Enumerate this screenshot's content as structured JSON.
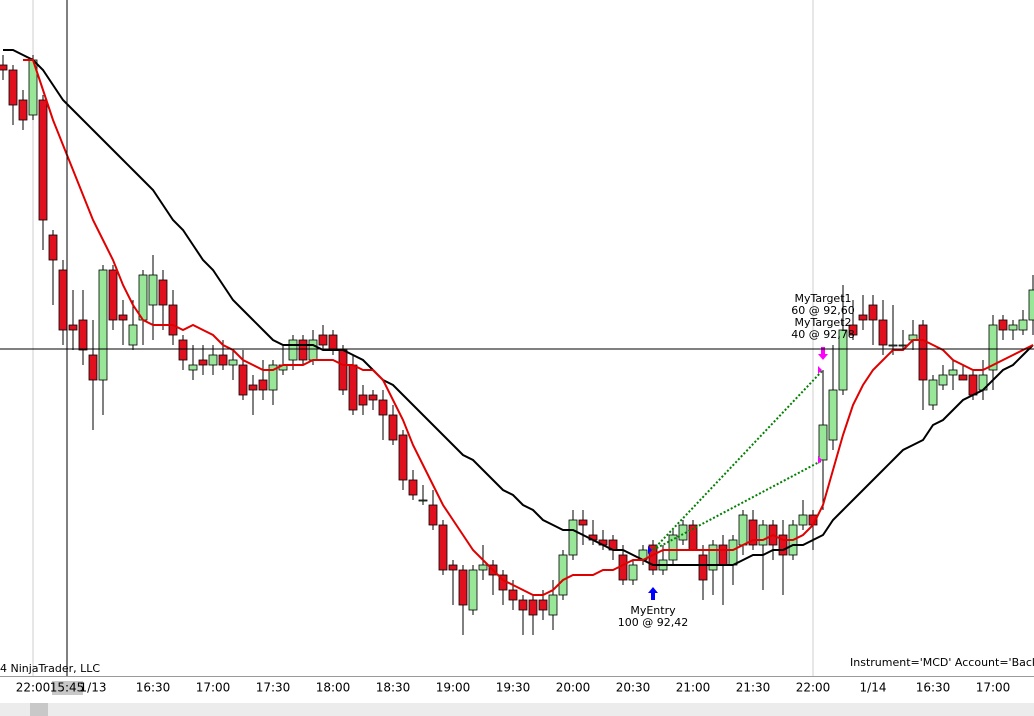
{
  "chart_data": {
    "type": "candlestick",
    "copyright": "4 NinjaTrader, LLC",
    "info": "Instrument='MCD' Account='Backtest",
    "crosshair_label": "15:45",
    "up_color": "#98e698",
    "down_color": "#e0101e",
    "ylim": [
      92.17,
      93.52
    ],
    "x": [
      null,
      null,
      null,
      "22:00",
      null,
      null,
      null,
      null,
      null,
      "1/13",
      null,
      null,
      null,
      null,
      null,
      "16:30",
      null,
      null,
      null,
      null,
      null,
      "17:00",
      null,
      null,
      null,
      null,
      null,
      "17:30",
      null,
      null,
      null,
      null,
      null,
      "18:00",
      null,
      null,
      null,
      null,
      null,
      "18:30",
      null,
      null,
      null,
      null,
      null,
      "19:00",
      null,
      null,
      null,
      null,
      null,
      "19:30",
      null,
      null,
      null,
      null,
      null,
      "20:00",
      null,
      null,
      null,
      null,
      null,
      "20:30",
      null,
      null,
      null,
      null,
      null,
      "21:00",
      null,
      null,
      null,
      null,
      null,
      "21:30",
      null,
      null,
      null,
      null,
      null,
      "22:00",
      null,
      null,
      null,
      null,
      null,
      "1/14",
      null,
      null,
      null,
      null,
      null,
      "16:30",
      null,
      null,
      null,
      null,
      null,
      "17:00",
      null,
      null,
      null,
      null
    ],
    "open": [
      93.39,
      93.38,
      93.32,
      93.29,
      93.32,
      93.05,
      92.98,
      92.87,
      92.88,
      92.81,
      92.76,
      92.98,
      92.89,
      92.83,
      92.88,
      92.91,
      92.96,
      92.91,
      92.84,
      92.78,
      92.8,
      92.79,
      92.81,
      92.79,
      92.79,
      92.75,
      92.76,
      92.74,
      92.78,
      92.8,
      92.84,
      92.8,
      92.85,
      92.85,
      92.82,
      92.79,
      92.73,
      92.73,
      92.72,
      92.69,
      92.65,
      92.56,
      92.52,
      92.51,
      92.47,
      92.39,
      92.38,
      92.3,
      92.38,
      92.39,
      92.37,
      92.34,
      92.32,
      92.32,
      92.32,
      92.29,
      92.33,
      92.41,
      92.48,
      92.45,
      92.44,
      92.44,
      92.41,
      92.36,
      92.4,
      92.43,
      92.38,
      92.4,
      92.44,
      92.47,
      92.41,
      92.38,
      92.43,
      92.39,
      92.43,
      92.48,
      92.43,
      92.47,
      92.45,
      92.41,
      92.47,
      92.49,
      92.6,
      92.64,
      92.74,
      92.87,
      92.89,
      92.91,
      92.88,
      92.83,
      92.83,
      92.84,
      92.87,
      92.71,
      92.75,
      92.77,
      92.77,
      92.77,
      92.74,
      92.78,
      92.88,
      92.86,
      92.86,
      92.88
    ],
    "high": [
      93.41,
      93.39,
      93.34,
      93.41,
      93.33,
      93.06,
      93.0,
      92.94,
      92.94,
      92.88,
      92.99,
      92.99,
      92.92,
      92.92,
      92.98,
      93.01,
      92.98,
      92.94,
      92.85,
      92.83,
      92.83,
      92.83,
      92.84,
      92.82,
      92.82,
      92.77,
      92.8,
      92.8,
      92.83,
      92.85,
      92.85,
      92.86,
      92.87,
      92.86,
      92.83,
      92.81,
      92.75,
      92.74,
      92.74,
      92.71,
      92.66,
      92.58,
      92.55,
      92.54,
      92.48,
      92.4,
      92.39,
      92.39,
      92.43,
      92.4,
      92.38,
      92.36,
      92.33,
      92.33,
      92.34,
      92.36,
      92.42,
      92.5,
      92.5,
      92.48,
      92.46,
      92.45,
      92.43,
      92.4,
      92.43,
      92.44,
      92.43,
      92.46,
      92.48,
      92.48,
      92.43,
      92.44,
      92.45,
      92.45,
      92.5,
      92.5,
      92.48,
      92.48,
      92.48,
      92.48,
      92.52,
      92.5,
      92.78,
      92.83,
      92.95,
      92.92,
      92.93,
      92.93,
      92.92,
      92.91,
      92.86,
      92.88,
      92.88,
      92.77,
      92.79,
      92.8,
      92.79,
      92.78,
      92.8,
      92.89,
      92.89,
      92.88,
      92.9,
      92.97
    ],
    "low": [
      93.36,
      93.27,
      93.26,
      93.28,
      93.02,
      92.91,
      92.83,
      92.82,
      92.79,
      92.66,
      92.69,
      92.86,
      92.83,
      92.82,
      92.83,
      92.84,
      92.86,
      92.83,
      92.78,
      92.76,
      92.77,
      92.77,
      92.78,
      92.76,
      92.72,
      92.69,
      92.72,
      92.71,
      92.77,
      92.78,
      92.79,
      92.79,
      92.82,
      92.81,
      92.73,
      92.69,
      92.69,
      92.7,
      92.64,
      92.63,
      92.54,
      92.52,
      92.51,
      92.46,
      92.37,
      92.31,
      92.25,
      92.29,
      92.36,
      92.33,
      92.31,
      92.3,
      92.25,
      92.25,
      92.28,
      92.26,
      92.32,
      92.4,
      92.43,
      92.43,
      92.42,
      92.4,
      92.35,
      92.35,
      92.39,
      92.37,
      92.37,
      92.39,
      92.43,
      92.42,
      92.32,
      92.33,
      92.31,
      92.35,
      92.41,
      92.42,
      92.34,
      92.4,
      92.33,
      92.4,
      92.46,
      92.42,
      92.5,
      92.62,
      92.73,
      92.84,
      92.86,
      92.83,
      92.81,
      92.81,
      92.82,
      92.82,
      92.7,
      92.7,
      92.74,
      92.74,
      92.76,
      92.72,
      92.72,
      92.74,
      92.84,
      92.84,
      92.85,
      92.85
    ],
    "close": [
      93.38,
      93.31,
      93.28,
      93.4,
      93.08,
      93.0,
      92.86,
      92.86,
      92.82,
      92.76,
      92.98,
      92.88,
      92.88,
      92.87,
      92.97,
      92.97,
      92.91,
      92.85,
      92.8,
      92.79,
      92.79,
      92.81,
      92.79,
      92.8,
      92.73,
      92.74,
      92.74,
      92.79,
      92.79,
      92.84,
      92.8,
      92.84,
      92.83,
      92.82,
      92.74,
      92.7,
      92.71,
      92.72,
      92.69,
      92.64,
      92.56,
      92.53,
      92.52,
      92.47,
      92.38,
      92.38,
      92.31,
      92.38,
      92.39,
      92.37,
      92.34,
      92.32,
      92.3,
      92.29,
      92.3,
      92.33,
      92.41,
      92.48,
      92.47,
      92.44,
      92.43,
      92.42,
      92.36,
      92.39,
      92.42,
      92.38,
      92.4,
      92.45,
      92.47,
      92.42,
      92.36,
      92.43,
      92.39,
      92.44,
      92.49,
      92.43,
      92.47,
      92.43,
      92.41,
      92.47,
      92.49,
      92.47,
      92.67,
      92.74,
      92.86,
      92.85,
      92.88,
      92.88,
      92.83,
      92.83,
      92.83,
      92.85,
      92.76,
      92.76,
      92.77,
      92.78,
      92.76,
      92.73,
      92.77,
      92.87,
      92.86,
      92.87,
      92.88,
      92.94
    ],
    "lines": [
      {
        "color": "#000000",
        "values": [
          93.42,
          93.42,
          93.41,
          93.4,
          93.38,
          93.35,
          93.32,
          93.3,
          93.28,
          93.26,
          93.24,
          93.22,
          93.2,
          93.18,
          93.16,
          93.14,
          93.11,
          93.08,
          93.06,
          93.03,
          93.0,
          92.98,
          92.95,
          92.92,
          92.9,
          92.88,
          92.86,
          92.84,
          92.83,
          92.83,
          92.83,
          92.83,
          92.82,
          92.82,
          92.82,
          92.81,
          92.8,
          92.78,
          92.76,
          92.75,
          92.73,
          92.71,
          92.69,
          92.67,
          92.65,
          92.63,
          92.61,
          92.6,
          92.58,
          92.56,
          92.54,
          92.53,
          92.51,
          92.5,
          92.48,
          92.47,
          92.46,
          92.46,
          92.45,
          92.44,
          92.43,
          92.42,
          92.42,
          92.41,
          92.4,
          92.39,
          92.39,
          92.39,
          92.39,
          92.39,
          92.39,
          92.39,
          92.39,
          92.39,
          92.4,
          92.41,
          92.41,
          92.42,
          92.42,
          92.43,
          92.43,
          92.44,
          92.45,
          92.48,
          92.5,
          92.52,
          92.54,
          92.56,
          92.58,
          92.6,
          92.62,
          92.63,
          92.64,
          92.67,
          92.68,
          92.7,
          92.72,
          92.73,
          92.74,
          92.76,
          92.78,
          92.79,
          92.81,
          92.83
        ]
      },
      {
        "color": "#e00000",
        "values": [
          null,
          null,
          93.4,
          93.4,
          93.34,
          93.28,
          93.23,
          93.18,
          93.13,
          93.08,
          93.04,
          93.0,
          92.95,
          92.91,
          92.88,
          92.87,
          92.87,
          92.87,
          92.86,
          92.87,
          92.86,
          92.85,
          92.83,
          92.82,
          92.8,
          92.79,
          92.78,
          92.78,
          92.79,
          92.79,
          92.79,
          92.8,
          92.8,
          92.8,
          92.79,
          92.79,
          92.78,
          92.78,
          92.76,
          92.72,
          92.68,
          92.63,
          92.59,
          92.55,
          92.51,
          92.48,
          92.45,
          92.42,
          92.4,
          92.38,
          92.36,
          92.35,
          92.34,
          92.33,
          92.33,
          92.34,
          92.36,
          92.37,
          92.37,
          92.37,
          92.38,
          92.38,
          92.39,
          92.4,
          92.4,
          92.41,
          92.42,
          92.42,
          92.42,
          92.42,
          92.42,
          92.42,
          92.42,
          92.42,
          92.43,
          92.44,
          92.44,
          92.45,
          92.44,
          92.44,
          92.45,
          92.47,
          92.51,
          92.58,
          92.65,
          92.71,
          92.75,
          92.78,
          92.8,
          92.82,
          92.82,
          92.84,
          92.84,
          92.83,
          92.82,
          92.8,
          92.79,
          92.78,
          92.78,
          92.79,
          92.8,
          92.81,
          92.82,
          92.83
        ]
      }
    ],
    "executions": [
      {
        "name": "MyEntry",
        "label": "100 @ 92,42",
        "color": "#0000ff",
        "values": [
          null,
          null,
          null,
          null,
          null,
          null,
          null,
          null,
          null,
          null,
          null,
          null,
          null,
          null,
          null,
          null,
          null,
          null,
          null,
          null,
          null,
          null,
          null,
          null,
          null,
          null,
          null,
          null,
          null,
          null,
          null,
          null,
          null,
          null,
          null,
          null,
          null,
          null,
          null,
          null,
          null,
          null,
          null,
          null,
          null,
          null,
          null,
          null,
          null,
          null,
          null,
          null,
          null,
          null,
          null,
          null,
          null,
          null,
          null,
          null,
          null,
          null,
          null,
          null,
          null,
          92.42,
          null,
          null,
          null,
          null,
          null,
          null,
          null,
          null,
          null,
          null,
          null,
          null,
          null,
          null,
          null,
          null,
          null,
          null,
          null,
          null,
          null,
          null,
          null,
          null,
          null,
          null,
          null,
          null,
          null,
          null,
          null,
          null,
          null,
          null,
          null,
          null,
          null,
          null
        ]
      },
      {
        "name": "MyTarget1",
        "label": "60 @ 92,60",
        "color": "#ff00ff",
        "values": [
          null,
          null,
          null,
          null,
          null,
          null,
          null,
          null,
          null,
          null,
          null,
          null,
          null,
          null,
          null,
          null,
          null,
          null,
          null,
          null,
          null,
          null,
          null,
          null,
          null,
          null,
          null,
          null,
          null,
          null,
          null,
          null,
          null,
          null,
          null,
          null,
          null,
          null,
          null,
          null,
          null,
          null,
          null,
          null,
          null,
          null,
          null,
          null,
          null,
          null,
          null,
          null,
          null,
          null,
          null,
          null,
          null,
          null,
          null,
          null,
          null,
          null,
          null,
          null,
          null,
          null,
          null,
          null,
          null,
          null,
          null,
          null,
          null,
          null,
          null,
          null,
          null,
          null,
          null,
          null,
          null,
          null,
          92.6,
          null,
          null,
          null,
          null,
          null,
          null,
          null,
          null,
          null,
          null,
          null,
          null,
          null,
          null,
          null,
          null,
          null,
          null,
          null,
          null,
          null
        ]
      },
      {
        "name": "MyTarget2",
        "label": "40 @ 92,78",
        "color": "#ff00ff",
        "values": [
          null,
          null,
          null,
          null,
          null,
          null,
          null,
          null,
          null,
          null,
          null,
          null,
          null,
          null,
          null,
          null,
          null,
          null,
          null,
          null,
          null,
          null,
          null,
          null,
          null,
          null,
          null,
          null,
          null,
          null,
          null,
          null,
          null,
          null,
          null,
          null,
          null,
          null,
          null,
          null,
          null,
          null,
          null,
          null,
          null,
          null,
          null,
          null,
          null,
          null,
          null,
          null,
          null,
          null,
          null,
          null,
          null,
          null,
          null,
          null,
          null,
          null,
          null,
          null,
          null,
          null,
          null,
          null,
          null,
          null,
          null,
          null,
          null,
          null,
          null,
          null,
          null,
          null,
          null,
          null,
          null,
          null,
          92.78,
          null,
          null,
          null,
          null,
          null,
          null,
          null,
          null,
          null,
          null,
          null,
          null,
          null,
          null,
          null,
          null,
          null,
          null,
          null,
          null,
          null
        ]
      }
    ]
  }
}
